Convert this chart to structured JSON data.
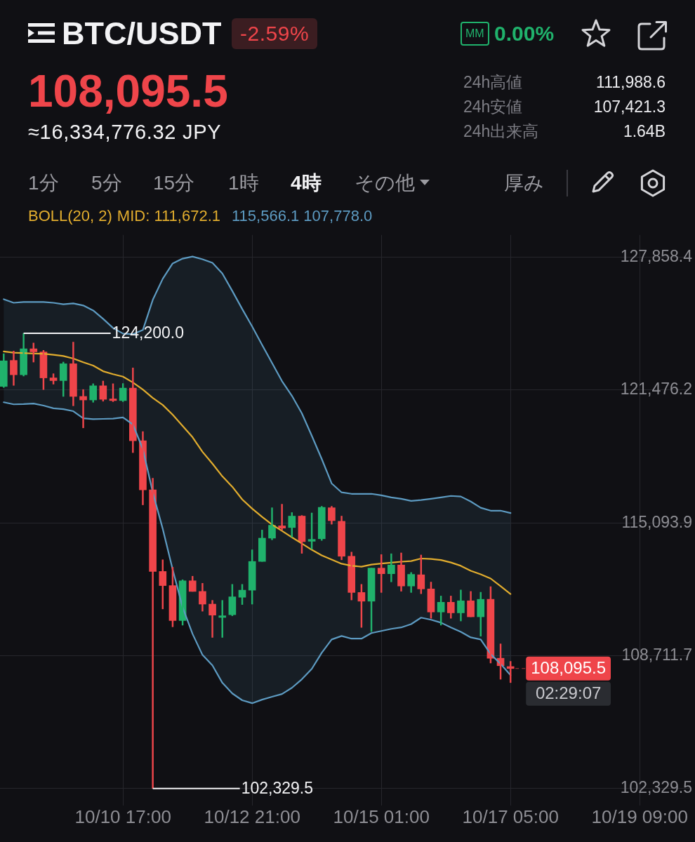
{
  "chart_data": {
    "type": "candlestick",
    "title": "BTC/USDT",
    "x": [
      "--10-08T17:00",
      "--10-08T21:00",
      "--10-09T01:00",
      "--10-09T05:00",
      "--10-09T09:00",
      "--10-09T13:00",
      "--10-09T17:00",
      "--10-09T21:00",
      "--10-10T01:00",
      "--10-10T05:00",
      "--10-10T09:00",
      "--10-10T13:00",
      "--10-10T17:00",
      "--10-10T21:00",
      "--10-11T01:00",
      "--10-11T05:00",
      "--10-11T09:00",
      "--10-11T13:00",
      "--10-11T17:00",
      "--10-11T21:00",
      "--10-12T01:00",
      "--10-12T05:00",
      "--10-12T09:00",
      "--10-12T13:00",
      "--10-12T17:00",
      "--10-12T21:00",
      "--10-13T01:00",
      "--10-13T05:00",
      "--10-13T09:00",
      "--10-13T13:00",
      "--10-13T17:00",
      "--10-13T21:00",
      "--10-14T01:00",
      "--10-14T05:00",
      "--10-14T09:00",
      "--10-14T13:00",
      "--10-14T17:00",
      "--10-14T21:00",
      "--10-15T01:00",
      "--10-15T05:00",
      "--10-15T09:00",
      "--10-15T13:00",
      "--10-15T17:00",
      "--10-15T21:00",
      "--10-16T01:00",
      "--10-16T05:00",
      "--10-16T09:00",
      "--10-16T13:00",
      "--10-16T17:00",
      "--10-16T21:00",
      "--10-17T01:00",
      "--10-17T05:00"
    ],
    "ohlc": [
      [
        121650,
        123220,
        121600,
        122880
      ],
      [
        122900,
        123350,
        121700,
        122210
      ],
      [
        122210,
        124200,
        122150,
        123460
      ],
      [
        123460,
        123740,
        122820,
        123310
      ],
      [
        123310,
        123380,
        121500,
        122060
      ],
      [
        122060,
        122260,
        121760,
        121930
      ],
      [
        121930,
        122820,
        121170,
        122740
      ],
      [
        122740,
        123780,
        120720,
        121170
      ],
      [
        121170,
        121500,
        119660,
        121000
      ],
      [
        121000,
        121780,
        120890,
        121680
      ],
      [
        121680,
        121910,
        120940,
        121030
      ],
      [
        121050,
        121780,
        120920,
        120970
      ],
      [
        120970,
        121790,
        120920,
        121570
      ],
      [
        121570,
        122540,
        118470,
        119040
      ],
      [
        119040,
        119480,
        115960,
        116680
      ],
      [
        116680,
        117240,
        102329.5,
        112760
      ],
      [
        112760,
        113320,
        110960,
        112080
      ],
      [
        112080,
        112960,
        110100,
        110400
      ],
      [
        110400,
        112360,
        110180,
        112310
      ],
      [
        112310,
        112530,
        111800,
        111800
      ],
      [
        111800,
        112190,
        110850,
        111190
      ],
      [
        111190,
        111370,
        109590,
        110660
      ],
      [
        110550,
        111370,
        109590,
        110630
      ],
      [
        110680,
        112140,
        110630,
        111540
      ],
      [
        111520,
        112140,
        111170,
        111860
      ],
      [
        111860,
        113800,
        111190,
        113240
      ],
      [
        113240,
        114750,
        113240,
        114360
      ],
      [
        114360,
        115820,
        114280,
        114980
      ],
      [
        114950,
        115990,
        114750,
        114840
      ],
      [
        114870,
        115590,
        114410,
        115420
      ],
      [
        115420,
        115450,
        113630,
        114190
      ],
      [
        114210,
        115570,
        113830,
        114300
      ],
      [
        114330,
        115890,
        114250,
        115840
      ],
      [
        115820,
        115890,
        115030,
        115200
      ],
      [
        115170,
        115420,
        113320,
        113490
      ],
      [
        113490,
        113690,
        111390,
        111750
      ],
      [
        111750,
        112140,
        110070,
        111330
      ],
      [
        111330,
        112920,
        109870,
        112920
      ],
      [
        112920,
        113570,
        111750,
        112650
      ],
      [
        112650,
        113610,
        112260,
        113070
      ],
      [
        113070,
        113650,
        111810,
        112060
      ],
      [
        112060,
        112710,
        111750,
        112620
      ],
      [
        112600,
        113550,
        111690,
        111920
      ],
      [
        111920,
        112250,
        110510,
        110810
      ],
      [
        110810,
        111580,
        110180,
        111280
      ],
      [
        111280,
        111580,
        110510,
        110770
      ],
      [
        110770,
        111870,
        110380,
        111350
      ],
      [
        111350,
        111800,
        110580,
        110580
      ],
      [
        110580,
        111760,
        109650,
        111420
      ],
      [
        111420,
        112030,
        108360,
        108590
      ],
      [
        108590,
        109280,
        107580,
        108230
      ],
      [
        108190,
        108440,
        107420,
        108095.5
      ]
    ],
    "colors": [
      "#20b26c",
      "#ef454a",
      "#20b26c",
      "#ef454a",
      "#ef454a",
      "#ef454a",
      "#20b26c",
      "#ef454a",
      "#ef454a",
      "#20b26c",
      "#ef454a",
      "#ef454a",
      "#20b26c",
      "#ef454a",
      "#ef454a",
      "#ef454a",
      "#ef454a",
      "#ef454a",
      "#20b26c",
      "#ef454a",
      "#ef454a",
      "#ef454a",
      "#20b26c",
      "#20b26c",
      "#20b26c",
      "#20b26c",
      "#20b26c",
      "#20b26c",
      "#ef454a",
      "#20b26c",
      "#ef454a",
      "#20b26c",
      "#20b26c",
      "#ef454a",
      "#ef454a",
      "#ef454a",
      "#ef454a",
      "#20b26c",
      "#ef454a",
      "#20b26c",
      "#ef454a",
      "#20b26c",
      "#ef454a",
      "#ef454a",
      "#20b26c",
      "#ef454a",
      "#20b26c",
      "#ef454a",
      "#20b26c",
      "#ef454a",
      "#ef454a",
      "#ef454a"
    ],
    "series": [
      {
        "type": "line",
        "name": "MID: 111,672.1",
        "color": "#e2ad2e",
        "values": [
          123330,
          123270,
          123250,
          123230,
          123220,
          123170,
          123110,
          122990,
          122810,
          122650,
          122380,
          122240,
          122120,
          121840,
          121500,
          121100,
          120760,
          120290,
          119750,
          119210,
          118510,
          117940,
          117330,
          116830,
          116220,
          115780,
          115380,
          115010,
          114710,
          114400,
          114100,
          113800,
          113530,
          113330,
          113130,
          113030,
          112990,
          113090,
          113140,
          113180,
          113230,
          113260,
          113380,
          113360,
          113310,
          113190,
          113030,
          112790,
          112620,
          112420,
          112050,
          111672.1
        ]
      },
      {
        "type": "line",
        "name": "115,566.1 107,778.0",
        "color": "#5d9bc2",
        "values": [
          125840,
          125670,
          125710,
          125710,
          125710,
          125670,
          125600,
          125640,
          125540,
          125300,
          124900,
          124460,
          124190,
          124160,
          124360,
          125810,
          126820,
          127560,
          127790,
          127890,
          127760,
          127590,
          127080,
          126240,
          125370,
          124530,
          123650,
          122780,
          121910,
          121200,
          120360,
          119280,
          118170,
          116990,
          116560,
          116490,
          116490,
          116490,
          116420,
          116320,
          116250,
          116150,
          116190,
          116250,
          116320,
          116390,
          116360,
          116120,
          115820,
          115680,
          115680,
          115566.1
        ],
        "upper": [
          125840,
          125670,
          125710,
          125710,
          125710,
          125670,
          125600,
          125640,
          125540,
          125300,
          124900,
          124460,
          124190,
          124160,
          124360,
          125810,
          126820,
          127560,
          127790,
          127890,
          127760,
          127590,
          127080,
          126240,
          125370,
          124530,
          123650,
          122780,
          121910,
          121200,
          120360,
          119280,
          118170,
          116990,
          116560,
          116490,
          116490,
          116490,
          116420,
          116320,
          116250,
          116150,
          116190,
          116250,
          116320,
          116390,
          116360,
          116120,
          115820,
          115680,
          115680,
          115566.1
        ],
        "lower": [
          120890,
          120790,
          120800,
          120830,
          120730,
          120600,
          120560,
          120460,
          120120,
          120080,
          120090,
          120100,
          120160,
          119820,
          118640,
          116560,
          114810,
          112860,
          111040,
          109760,
          108750,
          108250,
          107410,
          106900,
          106570,
          106430,
          106600,
          106740,
          106870,
          107170,
          107580,
          108080,
          108850,
          109490,
          109660,
          109530,
          109530,
          109800,
          109900,
          110000,
          110070,
          110230,
          110540,
          110440,
          110300,
          110070,
          109860,
          109590,
          109490,
          108790,
          108320,
          107778.0
        ]
      },
      {
        "type": "line",
        "color": "#5d9bc2",
        "values": [
          120890,
          120790,
          120800,
          120830,
          120730,
          120600,
          120560,
          120460,
          120120,
          120080,
          120090,
          120100,
          120160,
          119820,
          118640,
          116560,
          114810,
          112860,
          111040,
          109760,
          108750,
          108250,
          107410,
          106900,
          106570,
          106430,
          106600,
          106740,
          106870,
          107170,
          107580,
          108080,
          108850,
          109490,
          109660,
          109530,
          109530,
          109800,
          109900,
          110000,
          110070,
          110230,
          110540,
          110440,
          110300,
          110070,
          109860,
          109590,
          109490,
          108790,
          108320,
          107778.0
        ]
      }
    ],
    "legend_title": "BOLL(20, 2)",
    "legend": "top left",
    "xlim": [
      "--10-08T15:30",
      "--10-20T05:00"
    ],
    "xticks": [
      {
        "value": "--10-10T17:00",
        "label": "10/10 17:00"
      },
      {
        "value": "--10-12T21:00",
        "label": "10/12 21:00"
      },
      {
        "value": "--10-15T01:00",
        "label": "10/15 01:00"
      },
      {
        "value": "--10-17T05:00",
        "label": "10/17 05:00"
      },
      {
        "value": "--10-19T09:00",
        "label": "10/19 09:00"
      }
    ],
    "ylim": [
      101520,
      128930
    ],
    "yticks": [
      {
        "value": 102329.5,
        "label": "102,329.5"
      },
      {
        "value": 108711.7,
        "label": "108,711.7"
      },
      {
        "value": 115093.9,
        "label": "115,093.9"
      },
      {
        "value": 121476.2,
        "label": "121,476.2"
      },
      {
        "value": 127858.4,
        "label": "127,858.4"
      }
    ],
    "grid": true,
    "ref_lines": [
      {
        "axis": "y",
        "value": 108095.5,
        "label": "108,095.5",
        "color": "#ef454a",
        "line_style": "dashed"
      }
    ],
    "annotations": [
      "-2.59%",
      "108,095.5",
      "≈16,334,776.32 JPY",
      "MM",
      "0.00%",
      "24h高値",
      "111,988.6",
      "24h安値",
      "107,421.3",
      "24h出来高",
      "1.64B",
      "1分",
      "5分",
      "15分",
      "1時",
      "4時",
      "その他",
      "厚み",
      {
        "text": "124,200.0",
        "x": "--10-09T01:00",
        "y": 124200
      },
      {
        "text": "102,329.5",
        "x": "--10-11T05:00",
        "y": 102329.5
      },
      "02:29:07"
    ]
  }
}
